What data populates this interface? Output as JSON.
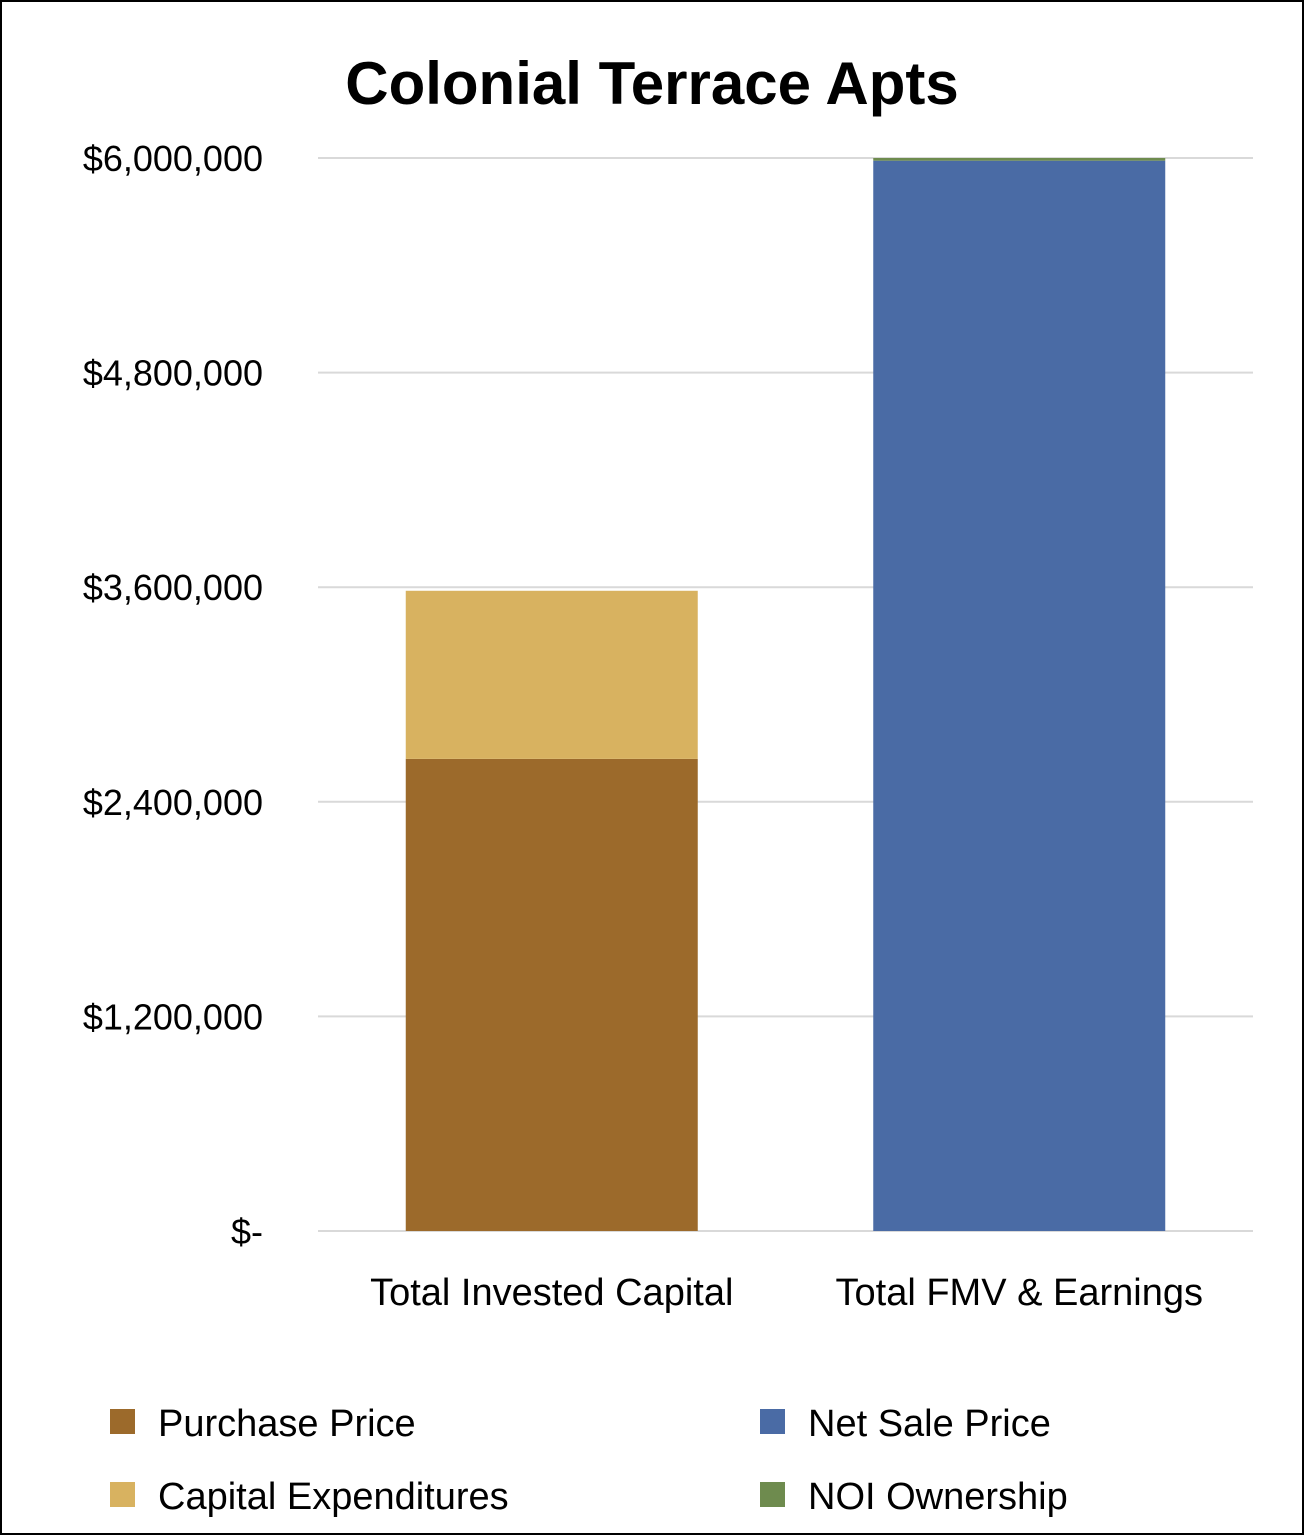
{
  "chart_data": {
    "type": "bar",
    "stacked": true,
    "title": "Colonial Terrace Apts",
    "categories": [
      "Total Invested Capital",
      "Total FMV & Earnings"
    ],
    "y_tick_labels": [
      "$-",
      "$1,200,000",
      "$2,400,000",
      "$3,600,000",
      "$4,800,000",
      "$6,000,000"
    ],
    "y_tick_values": [
      0,
      1200000,
      2400000,
      3600000,
      4800000,
      6000000
    ],
    "ylim": [
      0,
      6000000
    ],
    "grid": true,
    "legend_position": "bottom",
    "series": [
      {
        "name": "Purchase Price",
        "color": "#9C6A2B",
        "values": [
          2640000,
          0
        ]
      },
      {
        "name": "Capital Expenditures",
        "color": "#D8B260",
        "values": [
          940000,
          0
        ]
      },
      {
        "name": "Net Sale Price",
        "color": "#4A6BA5",
        "values": [
          0,
          5985000
        ]
      },
      {
        "name": "NOI Ownership",
        "color": "#6E8B4E",
        "values": [
          0,
          15000
        ]
      }
    ]
  }
}
